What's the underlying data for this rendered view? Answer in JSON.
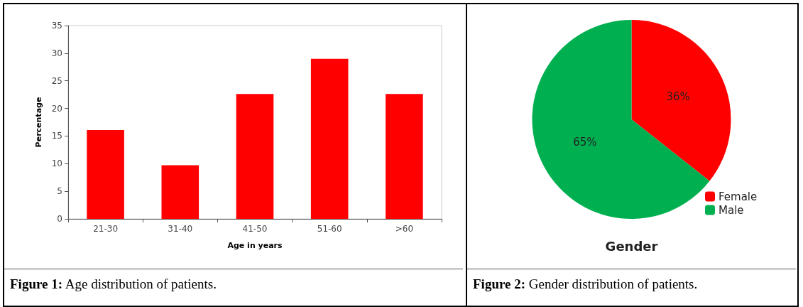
{
  "chart_data": [
    {
      "type": "bar",
      "xlabel": "Age in years",
      "ylabel": "Percentage",
      "categories": [
        "21-30",
        "31-40",
        "41-50",
        "51-60",
        ">60"
      ],
      "values": [
        16.1,
        9.7,
        22.6,
        29,
        22.6
      ],
      "color": "#ff0000",
      "ylim": [
        0,
        35
      ],
      "yticks": [
        0,
        5,
        10,
        15,
        20,
        25,
        30,
        35
      ],
      "grid": false,
      "legend": false,
      "annotations": [
        "Figure 1: Age distribution of patients."
      ]
    },
    {
      "type": "pie",
      "title": "Gender",
      "categories": [
        "Female",
        "Male"
      ],
      "values": [
        36,
        65
      ],
      "colors": [
        "#ff0000",
        "#00b050"
      ],
      "value_labels": [
        "36%",
        "65%"
      ],
      "legend": "bottom right",
      "annotations": [
        "Figure 2: Gender distribution of patients."
      ]
    }
  ]
}
